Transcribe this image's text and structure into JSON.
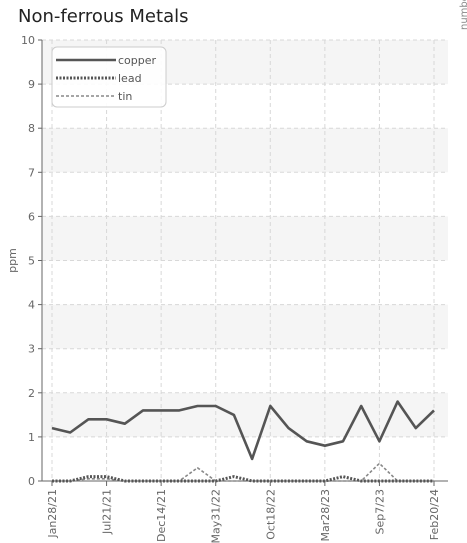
{
  "chart_data": {
    "type": "line",
    "title": "Non-ferrous Metals",
    "ylabel": "ppm",
    "y2label": "number of particles",
    "ylim": [
      0,
      10
    ],
    "yticks": [
      "0",
      "1",
      "2",
      "3",
      "4",
      "5",
      "6",
      "7",
      "8",
      "9",
      "10"
    ],
    "xticks": [
      "Jan28/21",
      "Jul21/21",
      "Dec14/21",
      "May31/22",
      "Oct18/22",
      "Mar28/23",
      "Sep7/23",
      "Feb20/24"
    ],
    "legend_position": "top-left",
    "grid": true,
    "series": [
      {
        "name": "copper",
        "color": "#555555",
        "style": "solid",
        "values": [
          1.2,
          1.1,
          1.4,
          1.4,
          1.3,
          1.6,
          1.6,
          1.6,
          1.7,
          1.7,
          1.5,
          0.5,
          1.7,
          1.2,
          0.9,
          0.8,
          0.9,
          1.7,
          0.9,
          1.8,
          1.2,
          1.6
        ]
      },
      {
        "name": "lead",
        "color": "#555555",
        "style": "dotted",
        "values": [
          0,
          0,
          0.1,
          0.1,
          0,
          0,
          0,
          0,
          0,
          0,
          0.1,
          0,
          0,
          0,
          0,
          0,
          0.1,
          0,
          0,
          0,
          0,
          0
        ]
      },
      {
        "name": "tin",
        "color": "#888888",
        "style": "dashed",
        "values": [
          0,
          0,
          0.05,
          0.05,
          0,
          0,
          0,
          0,
          0.3,
          0,
          0,
          0,
          0,
          0,
          0,
          0,
          0,
          0,
          0.4,
          0,
          0,
          0
        ]
      }
    ]
  }
}
